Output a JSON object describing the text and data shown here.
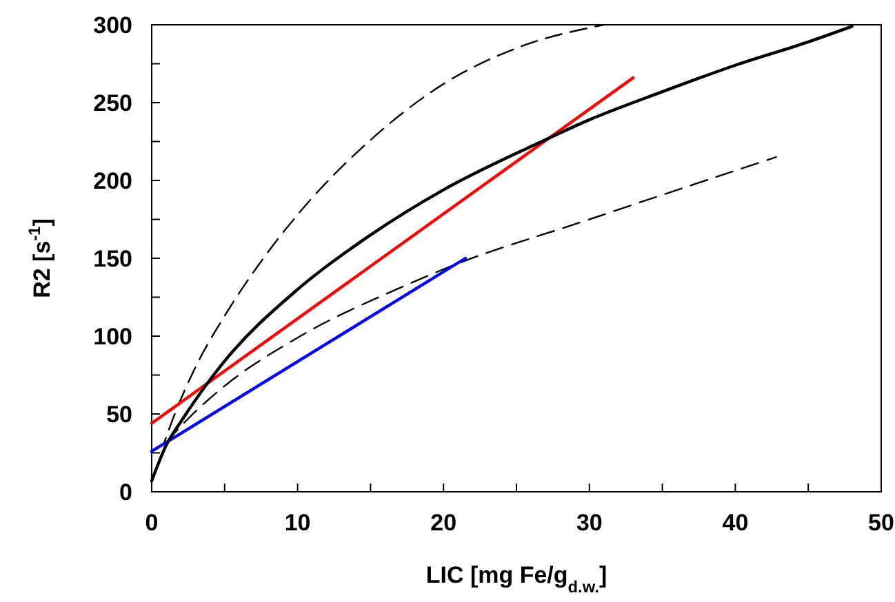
{
  "chart_data": {
    "type": "line",
    "xlabel": "LIC [mg Fe/g$_{d.w.}$]",
    "ylabel": "R2 [s$^{-1}$]",
    "xlim": [
      0,
      50
    ],
    "ylim": [
      0,
      300
    ],
    "xticks": [
      0,
      {
        "value": 5,
        "label": null
      },
      10,
      {
        "value": 15,
        "label": null
      },
      20,
      {
        "value": 25,
        "label": null
      },
      30,
      {
        "value": 35,
        "label": null
      },
      40,
      {
        "value": 45,
        "label": null
      },
      50
    ],
    "yticks": [
      0,
      {
        "value": 25,
        "label": null
      },
      50,
      {
        "value": 75,
        "label": null
      },
      100,
      {
        "value": 125,
        "label": null
      },
      150,
      {
        "value": 175,
        "label": null
      },
      200,
      {
        "value": 225,
        "label": null
      },
      250,
      {
        "value": 275,
        "label": null
      },
      300
    ],
    "grid": false,
    "marker": "none",
    "series": [
      {
        "color": "#000000",
        "line_style": "dashed",
        "x": [
          0.8,
          1.5,
          3,
          5,
          7.5,
          10,
          15,
          20,
          25,
          31
        ],
        "values": [
          30,
          48,
          80,
          113,
          148,
          178,
          226,
          262,
          285,
          300
        ]
      },
      {
        "color": "#000000",
        "line_style": "dashed",
        "x": [
          1.4,
          2.5,
          5,
          10,
          17.5,
          20,
          30,
          42.8
        ],
        "values": [
          36,
          47,
          68,
          99,
          133,
          143,
          175,
          215
        ]
      },
      {
        "color": "#ff0000",
        "x": [
          0,
          33
        ],
        "values": [
          44,
          266
        ]
      },
      {
        "color": "#0000ff",
        "x": [
          0,
          21.5
        ],
        "values": [
          26,
          150
        ]
      },
      {
        "color": "#000000",
        "x": [
          0,
          1,
          2,
          4,
          5,
          10,
          15,
          20,
          26.5,
          30,
          35,
          40,
          45,
          48
        ],
        "values": [
          7,
          30,
          45,
          72,
          84,
          130,
          165,
          194,
          224,
          239,
          257,
          274,
          289,
          299
        ]
      }
    ]
  }
}
